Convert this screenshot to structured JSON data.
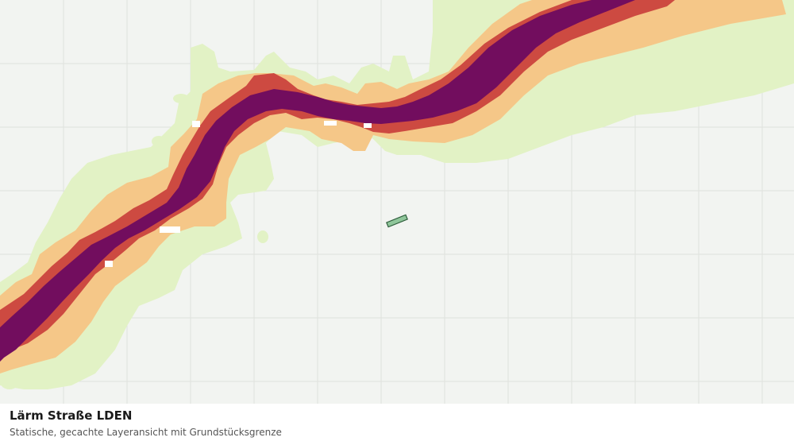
{
  "map": {
    "title": "Lärm Straße LDEN",
    "subtitle": "Statische, gecachte Layeransicht mit Grundstücksgrenze",
    "colors": {
      "background": "#f2f4f1",
      "grid": "#dfe2dd",
      "zone_outer": "#e2f2c5",
      "zone_low": "#f5c788",
      "zone_mid": "#cd4a41",
      "zone_high": "#720d5e",
      "parcel_fill": "#8fc69a",
      "parcel_stroke": "#2f5e3c"
    },
    "layers": [
      {
        "name": "noise-zone-outer"
      },
      {
        "name": "noise-zone-low"
      },
      {
        "name": "noise-zone-mid"
      },
      {
        "name": "noise-zone-high"
      },
      {
        "name": "parcel-boundary"
      }
    ]
  }
}
